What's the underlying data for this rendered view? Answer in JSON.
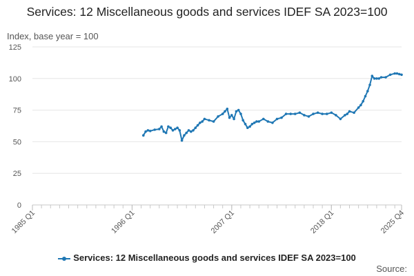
{
  "chart_data": {
    "type": "line",
    "title": "Services: 12 Miscellaneous goods and services IDEF SA 2023=100",
    "ylabel": "Index, base year = 100",
    "ylim": [
      0,
      125
    ],
    "yticks": [
      0,
      25,
      50,
      75,
      100,
      125
    ],
    "xlim": [
      1985.0,
      2025.75
    ],
    "xticks": [
      {
        "label": "1985 Q1",
        "x": 1985.0
      },
      {
        "label": "1996 Q1",
        "x": 1996.0
      },
      {
        "label": "2007 Q1",
        "x": 2007.0
      },
      {
        "label": "2018 Q1",
        "x": 2018.0
      },
      {
        "label": "2025 Q4",
        "x": 2025.75
      }
    ],
    "grid": true,
    "legend_position": "bottom",
    "color": "#1f77b4",
    "series": [
      {
        "name": "Services: 12 Miscellaneous goods and services IDEF SA 2023=100",
        "x": [
          1997.25,
          1997.5,
          1997.75,
          1998.0,
          1998.5,
          1999.0,
          1999.25,
          1999.5,
          1999.75,
          2000.0,
          2000.25,
          2000.5,
          2000.75,
          2001.0,
          2001.25,
          2001.5,
          2001.75,
          2002.0,
          2002.25,
          2002.5,
          2002.75,
          2003.0,
          2003.25,
          2003.5,
          2003.75,
          2004.0,
          2004.5,
          2005.0,
          2005.5,
          2006.0,
          2006.25,
          2006.5,
          2006.75,
          2007.0,
          2007.25,
          2007.5,
          2007.75,
          2008.0,
          2008.25,
          2008.5,
          2008.75,
          2009.0,
          2009.25,
          2009.5,
          2009.75,
          2010.0,
          2010.5,
          2011.0,
          2011.5,
          2012.0,
          2012.5,
          2013.0,
          2013.5,
          2014.0,
          2014.5,
          2015.0,
          2015.5,
          2016.0,
          2016.5,
          2017.0,
          2017.5,
          2018.0,
          2018.5,
          2019.0,
          2019.5,
          2019.75,
          2020.0,
          2020.5,
          2021.0,
          2021.25,
          2021.5,
          2021.75,
          2022.0,
          2022.25,
          2022.5,
          2022.75,
          2023.0,
          2023.25,
          2023.5,
          2024.0,
          2024.5,
          2025.0,
          2025.25,
          2025.5,
          2025.75
        ],
        "values": [
          55,
          58,
          59,
          58.5,
          59.5,
          60,
          62,
          58,
          57,
          62,
          61,
          59,
          60,
          61,
          59,
          51,
          55,
          57,
          59,
          58,
          59,
          61,
          63,
          65,
          66,
          68,
          67,
          66,
          70,
          72,
          74,
          76,
          69,
          71,
          68,
          74,
          75,
          72,
          67,
          64,
          61,
          62,
          64,
          65,
          66,
          66,
          68,
          66,
          65,
          68,
          69,
          72,
          72,
          72,
          73,
          71,
          70,
          72,
          73,
          72,
          72,
          73,
          71,
          68,
          71,
          72,
          74,
          73,
          77,
          79,
          82,
          86,
          90,
          95,
          102,
          100,
          100,
          100,
          101,
          101,
          103,
          104,
          104,
          103.5,
          103
        ]
      }
    ]
  },
  "source_label": "Source:"
}
